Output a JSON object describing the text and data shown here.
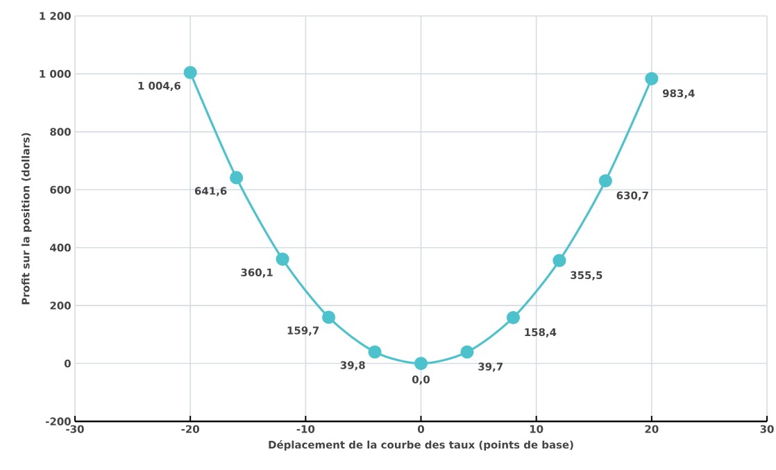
{
  "chart_data": {
    "type": "line",
    "xlabel": "Déplacement de la courbe des taux (points de base)",
    "ylabel": "Profit sur la position (dollars)",
    "x": [
      -20,
      -16,
      -12,
      -8,
      -4,
      0,
      4,
      8,
      12,
      16,
      20
    ],
    "series": [
      {
        "color": "#4cc3cc",
        "values": [
          1004.6,
          641.6,
          360.1,
          159.7,
          39.8,
          0.0,
          39.7,
          158.4,
          355.5,
          630.7,
          983.4
        ],
        "value_labels": [
          "1 004,6",
          "641,6",
          "360,1",
          "159,7",
          "39,8",
          "0,0",
          "39,7",
          "158,4",
          "355,5",
          "630,7",
          "983,4"
        ]
      }
    ],
    "xlim": [
      -30,
      30
    ],
    "xticks": [
      -30,
      -20,
      -10,
      0,
      10,
      20,
      30
    ],
    "ylim": [
      -200,
      1200
    ],
    "yticks": [
      -200,
      0,
      200,
      400,
      600,
      800,
      {
        "value": 1000,
        "label": "1 000"
      },
      {
        "value": 1200,
        "label": "1 200"
      }
    ],
    "grid": true,
    "marker": "circle",
    "line_style": "solid"
  }
}
